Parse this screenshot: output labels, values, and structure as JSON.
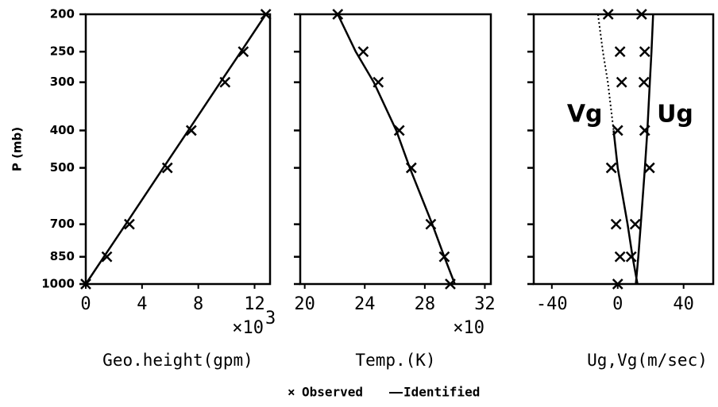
{
  "legend": {
    "observed": "Observed",
    "identified": "Identified"
  },
  "chart_data": [
    {
      "type": "profile",
      "ylabel": "P (mb)",
      "ylog": true,
      "ylim": [
        1000,
        200
      ],
      "yticks": [
        200,
        250,
        300,
        400,
        500,
        700,
        850,
        1000
      ],
      "ytick_labels": true,
      "levels": [
        200,
        250,
        300,
        400,
        500,
        700,
        850,
        1000
      ],
      "xlim": [
        0,
        13.1
      ],
      "xticks": [
        0,
        4,
        8,
        12
      ],
      "x_multiplier": "×10",
      "x_multiplier_exp": "3",
      "xlabel": "Geo.height(gpm)",
      "series": [
        {
          "observed": [
            12.8,
            11.2,
            9.9,
            7.5,
            5.8,
            3.1,
            1.5,
            0
          ],
          "identified": [
            12.8,
            11.03,
            9.57,
            7.29,
            5.51,
            2.84,
            1.29,
            0
          ]
        }
      ]
    },
    {
      "type": "profile",
      "ylog": true,
      "ylim": [
        1000,
        200
      ],
      "yticks": [
        200,
        250,
        300,
        400,
        500,
        700,
        850,
        1000
      ],
      "ytick_labels": false,
      "levels": [
        200,
        250,
        300,
        400,
        500,
        700,
        850,
        1000
      ],
      "xlim": [
        19.7,
        32.4
      ],
      "xticks": [
        20,
        24,
        28,
        32
      ],
      "x_multiplier": "×10",
      "xlabel": "Temp.(K)",
      "series": [
        {
          "observed": [
            22.2,
            23.9,
            24.9,
            26.3,
            27.1,
            28.4,
            29.3,
            29.7
          ],
          "identified": [
            22.2,
            23.4,
            24.6,
            26.1,
            27.0,
            28.5,
            29.3,
            30.0
          ]
        }
      ]
    },
    {
      "type": "profile",
      "ylog": true,
      "ylim": [
        1000,
        200
      ],
      "yticks": [
        200,
        250,
        300,
        400,
        500,
        700,
        850,
        1000
      ],
      "ytick_labels": false,
      "levels": [
        200,
        250,
        300,
        400,
        500,
        700,
        850,
        1000
      ],
      "xlim": [
        -51,
        58
      ],
      "xticks": [
        -40,
        0,
        40
      ],
      "xlabel": "Ug,Vg(m/sec)",
      "series": [
        {
          "name": "Ug",
          "observed": [
            14.5,
            16.4,
            15.9,
            16.4,
            19.3,
            10.6,
            8.2,
            null
          ],
          "identified": [
            21.5,
            20.5,
            19.5,
            18,
            16.5,
            14,
            12.5,
            11
          ]
        },
        {
          "name": "Vg",
          "observed": [
            -5.8,
            1.4,
            2.4,
            0,
            -3.9,
            -1,
            1.4,
            0
          ],
          "identified": [
            -12,
            -9,
            -6,
            -2.5,
            0,
            6,
            9,
            12
          ],
          "dotted_above": 400
        }
      ]
    }
  ]
}
